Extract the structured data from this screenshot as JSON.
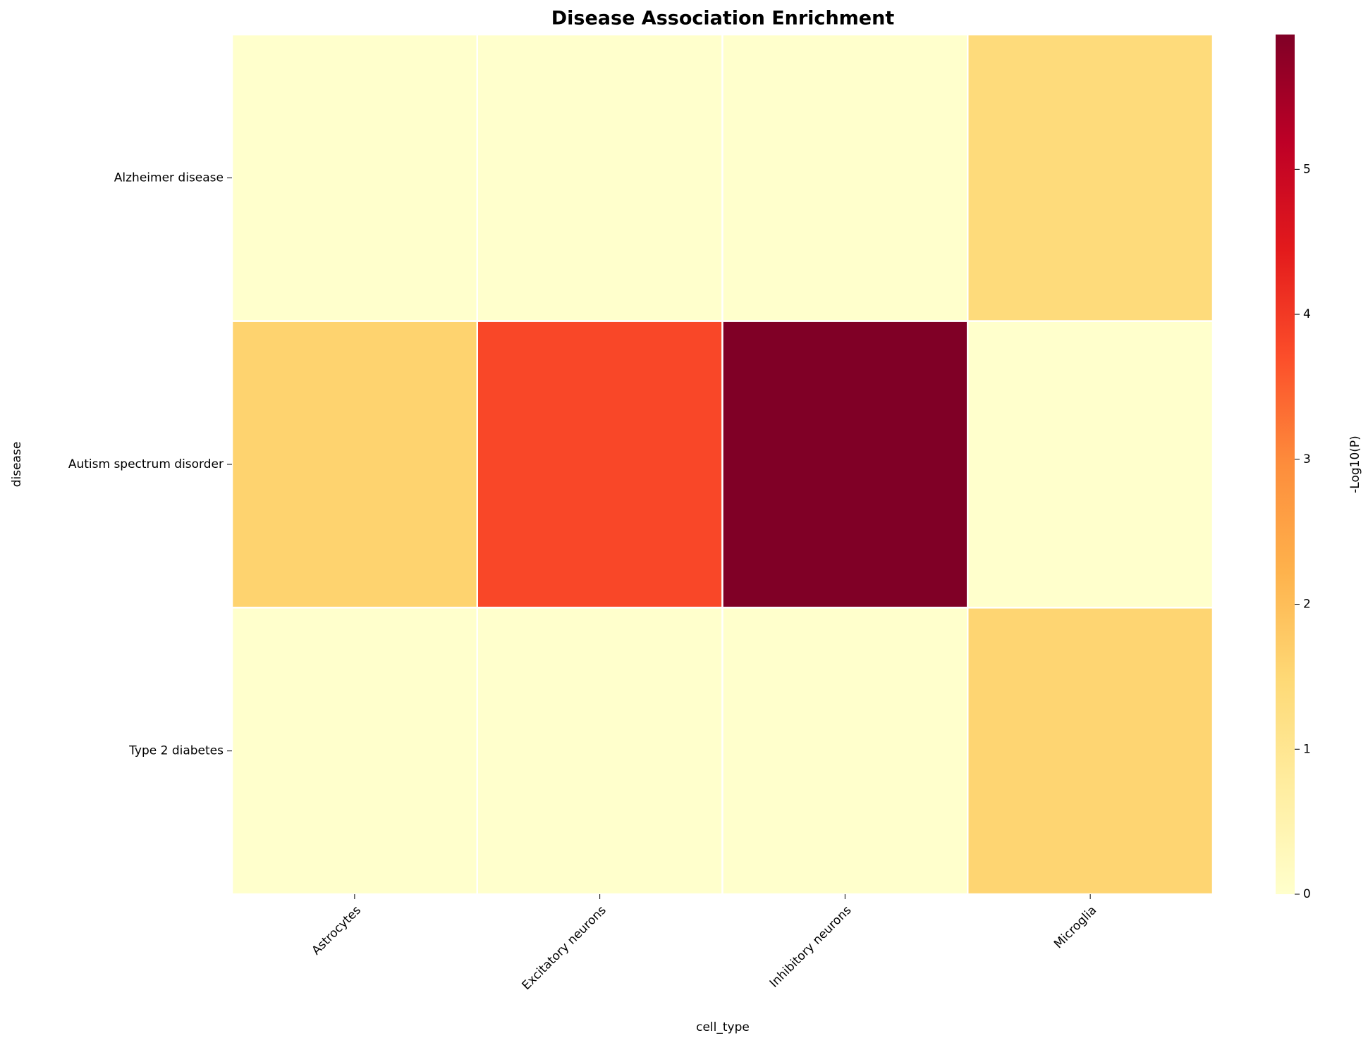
{
  "chart_data": {
    "type": "heatmap",
    "title": "Disease Association Enrichment",
    "x_label": "cell_type",
    "y_label": "disease",
    "categories": [
      "Astrocytes",
      "Excitatory neurons",
      "Inhibitory neurons",
      "Microglia"
    ],
    "rows": [
      "Alzheimer disease",
      "Autism spectrum disorder",
      "Type 2 diabetes"
    ],
    "values": [
      [
        0,
        0,
        0,
        1.4
      ],
      [
        1.6,
        3.8,
        5.93,
        0
      ],
      [
        0,
        0,
        0,
        1.55
      ]
    ],
    "colormap": "YlOrRd",
    "colorbar_label": "-Log10(P)",
    "zlim": [
      0,
      5.93
    ],
    "zticks": [
      0,
      1,
      2,
      3,
      4,
      5
    ]
  }
}
